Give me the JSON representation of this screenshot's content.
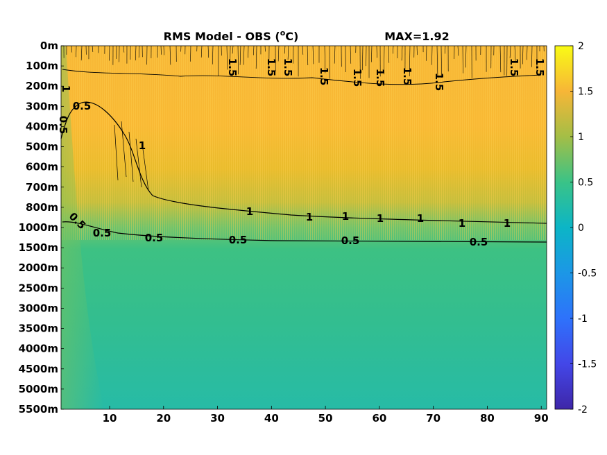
{
  "chart_data": {
    "type": "heatmap",
    "title_prefix": "RMS Model - OBS (",
    "title_sup": "o",
    "title_suffix": "C)",
    "max_label": "MAX=1.92",
    "xlim": [
      1,
      91
    ],
    "x_ticks": [
      10,
      20,
      30,
      40,
      50,
      60,
      70,
      80,
      90
    ],
    "y_tick_labels": [
      "0m",
      "100m",
      "200m",
      "300m",
      "400m",
      "500m",
      "600m",
      "700m",
      "800m",
      "1000m",
      "1500m",
      "2000m",
      "2500m",
      "3000m",
      "3500m",
      "4000m",
      "4500m",
      "5000m",
      "5500m"
    ],
    "colorbar": {
      "range": [
        -2,
        2
      ],
      "ticks": [
        "2",
        "1.5",
        "1",
        "0.5",
        "0",
        "-0.5",
        "-1",
        "-1.5",
        "-2"
      ],
      "colormap": "parula"
    },
    "contours": [
      {
        "level": 0.5,
        "labels": [
          "0.5",
          "0.5",
          "0.5",
          "0.5",
          "0.5",
          "0.5",
          "0.5",
          "0.5"
        ]
      },
      {
        "level": 1,
        "labels": [
          "1",
          "1",
          "1",
          "1",
          "1",
          "1",
          "1",
          "1",
          "1"
        ]
      },
      {
        "level": 1.5,
        "labels": [
          "1.5",
          "1.5",
          "1.5",
          "1.5",
          "1.5",
          "1.5",
          "1.5",
          "1.5",
          "1.5",
          "1.5"
        ]
      }
    ],
    "field_summary": [
      {
        "depth": "0m-700m",
        "value_range": [
          1.3,
          1.6
        ]
      },
      {
        "depth": "800m",
        "value_range": [
          1.0,
          1.3
        ]
      },
      {
        "depth": "1000m-1500m",
        "value_range": [
          0.5,
          1.0
        ]
      },
      {
        "depth": "2000m-5500m",
        "value_range": [
          0.2,
          0.5
        ]
      }
    ]
  }
}
